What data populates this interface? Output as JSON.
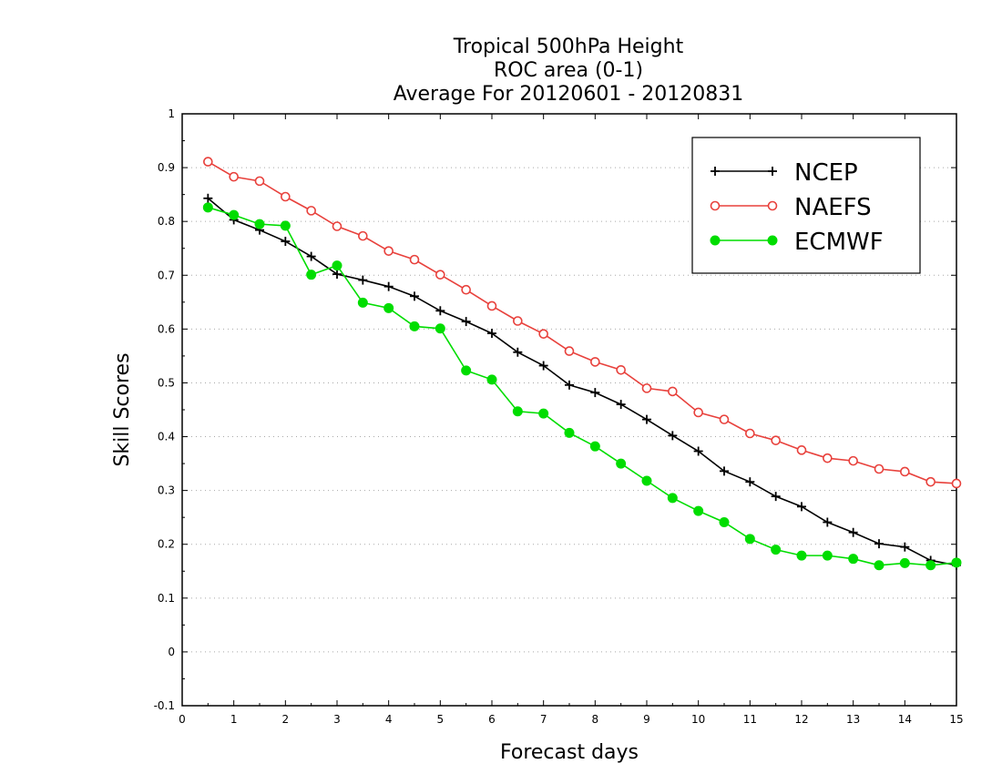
{
  "chart_data": {
    "type": "line",
    "title": [
      "Tropical 500hPa Height",
      "ROC area (0-1)",
      "Average For 20120601 - 20120831"
    ],
    "xlabel": "Forecast days",
    "ylabel": "Skill Scores",
    "xlim": [
      0,
      15
    ],
    "ylim": [
      -0.1,
      1
    ],
    "xticks": [
      "0",
      "1",
      "2",
      "3",
      "4",
      "5",
      "6",
      "7",
      "8",
      "9",
      "10",
      "11",
      "12",
      "13",
      "14",
      "15"
    ],
    "yticks": [
      "-0.1",
      "0",
      "0.1",
      "0.2",
      "0.3",
      "0.4",
      "0.5",
      "0.6",
      "0.7",
      "0.8",
      "0.9",
      "1"
    ],
    "grid": true,
    "legend_position": "top-right",
    "x": [
      0.5,
      1,
      1.5,
      2,
      2.5,
      3,
      3.5,
      4,
      4.5,
      5,
      5.5,
      6,
      6.5,
      7,
      7.5,
      8,
      8.5,
      9,
      9.5,
      10,
      10.5,
      11,
      11.5,
      12,
      12.5,
      13,
      13.5,
      14,
      14.5,
      15
    ],
    "series": [
      {
        "name": "NCEP",
        "color": "#000000",
        "marker": "plus",
        "values": [
          0.843,
          0.803,
          0.784,
          0.763,
          0.735,
          0.702,
          0.691,
          0.679,
          0.661,
          0.634,
          0.614,
          0.592,
          0.557,
          0.532,
          0.496,
          0.482,
          0.46,
          0.432,
          0.402,
          0.373,
          0.336,
          0.316,
          0.289,
          0.27,
          0.241,
          0.222,
          0.201,
          0.195,
          0.17,
          0.161
        ]
      },
      {
        "name": "NAEFS",
        "color": "#e8413c",
        "marker": "open-circle",
        "values": [
          0.911,
          0.883,
          0.875,
          0.846,
          0.82,
          0.791,
          0.773,
          0.745,
          0.729,
          0.701,
          0.673,
          0.643,
          0.615,
          0.591,
          0.559,
          0.539,
          0.524,
          0.49,
          0.484,
          0.445,
          0.432,
          0.406,
          0.393,
          0.375,
          0.36,
          0.355,
          0.34,
          0.335,
          0.316,
          0.313
        ]
      },
      {
        "name": "ECMWF",
        "color": "#00dd00",
        "marker": "filled-circle",
        "values": [
          0.826,
          0.812,
          0.795,
          0.792,
          0.701,
          0.718,
          0.649,
          0.639,
          0.605,
          0.601,
          0.523,
          0.506,
          0.447,
          0.443,
          0.407,
          0.382,
          0.35,
          0.318,
          0.286,
          0.262,
          0.241,
          0.21,
          0.19,
          0.179,
          0.179,
          0.173,
          0.161,
          0.165,
          0.161,
          0.166
        ]
      }
    ]
  }
}
